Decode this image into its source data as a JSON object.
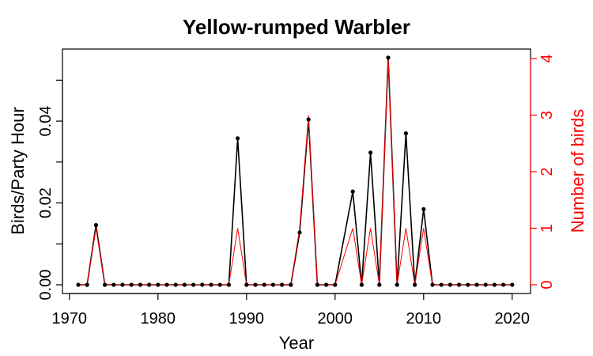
{
  "chart_data": {
    "type": "line",
    "title": "Yellow-rumped Warbler",
    "xlabel": "Year",
    "ylabel_left": "Birds/Party Hour",
    "ylabel_right": "Number of birds",
    "xlim": [
      1970,
      2020
    ],
    "ylim_left": [
      0,
      0.05
    ],
    "ylim_right": [
      0,
      4
    ],
    "x_ticks": [
      1970,
      1980,
      1990,
      2000,
      2010,
      2020
    ],
    "y_left_ticks": [
      "0.00",
      "0.02",
      "0.04"
    ],
    "y_right_ticks": [
      "0",
      "1",
      "2",
      "3",
      "4"
    ],
    "grid": false,
    "x": [
      1971,
      1972,
      1973,
      1974,
      1975,
      1976,
      1977,
      1978,
      1979,
      1980,
      1981,
      1982,
      1983,
      1984,
      1985,
      1986,
      1987,
      1988,
      1989,
      1990,
      1991,
      1992,
      1993,
      1994,
      1995,
      1996,
      1997,
      1998,
      1999,
      2000,
      2002,
      2003,
      2004,
      2005,
      2006,
      2007,
      2008,
      2009,
      2010,
      2011,
      2012,
      2013,
      2014,
      2015,
      2016,
      2017,
      2018,
      2019,
      2020
    ],
    "series": [
      {
        "axis": "left",
        "color": "#000000",
        "values": [
          0,
          0,
          0.0146,
          0,
          0,
          0,
          0,
          0,
          0,
          0,
          0,
          0,
          0,
          0,
          0,
          0,
          0,
          0,
          0.0358,
          0,
          0,
          0,
          0,
          0,
          0,
          0.0128,
          0.0404,
          0,
          0,
          0,
          0.0228,
          0,
          0.0323,
          0,
          0.0555,
          0,
          0.037,
          0,
          0.0185,
          0,
          0,
          0,
          0,
          0,
          0,
          0,
          0,
          0,
          0
        ]
      },
      {
        "axis": "right",
        "color": "#ff0000",
        "values": [
          0,
          0,
          1,
          0,
          0,
          0,
          0,
          0,
          0,
          0,
          0,
          0,
          0,
          0,
          0,
          0,
          0,
          0,
          1,
          0,
          0,
          0,
          0,
          0,
          0,
          1,
          3,
          0,
          0,
          0,
          1,
          0,
          1,
          0,
          4,
          0,
          1,
          0,
          1,
          0,
          0,
          0,
          0,
          0,
          0,
          0,
          0,
          0,
          0
        ]
      }
    ]
  }
}
